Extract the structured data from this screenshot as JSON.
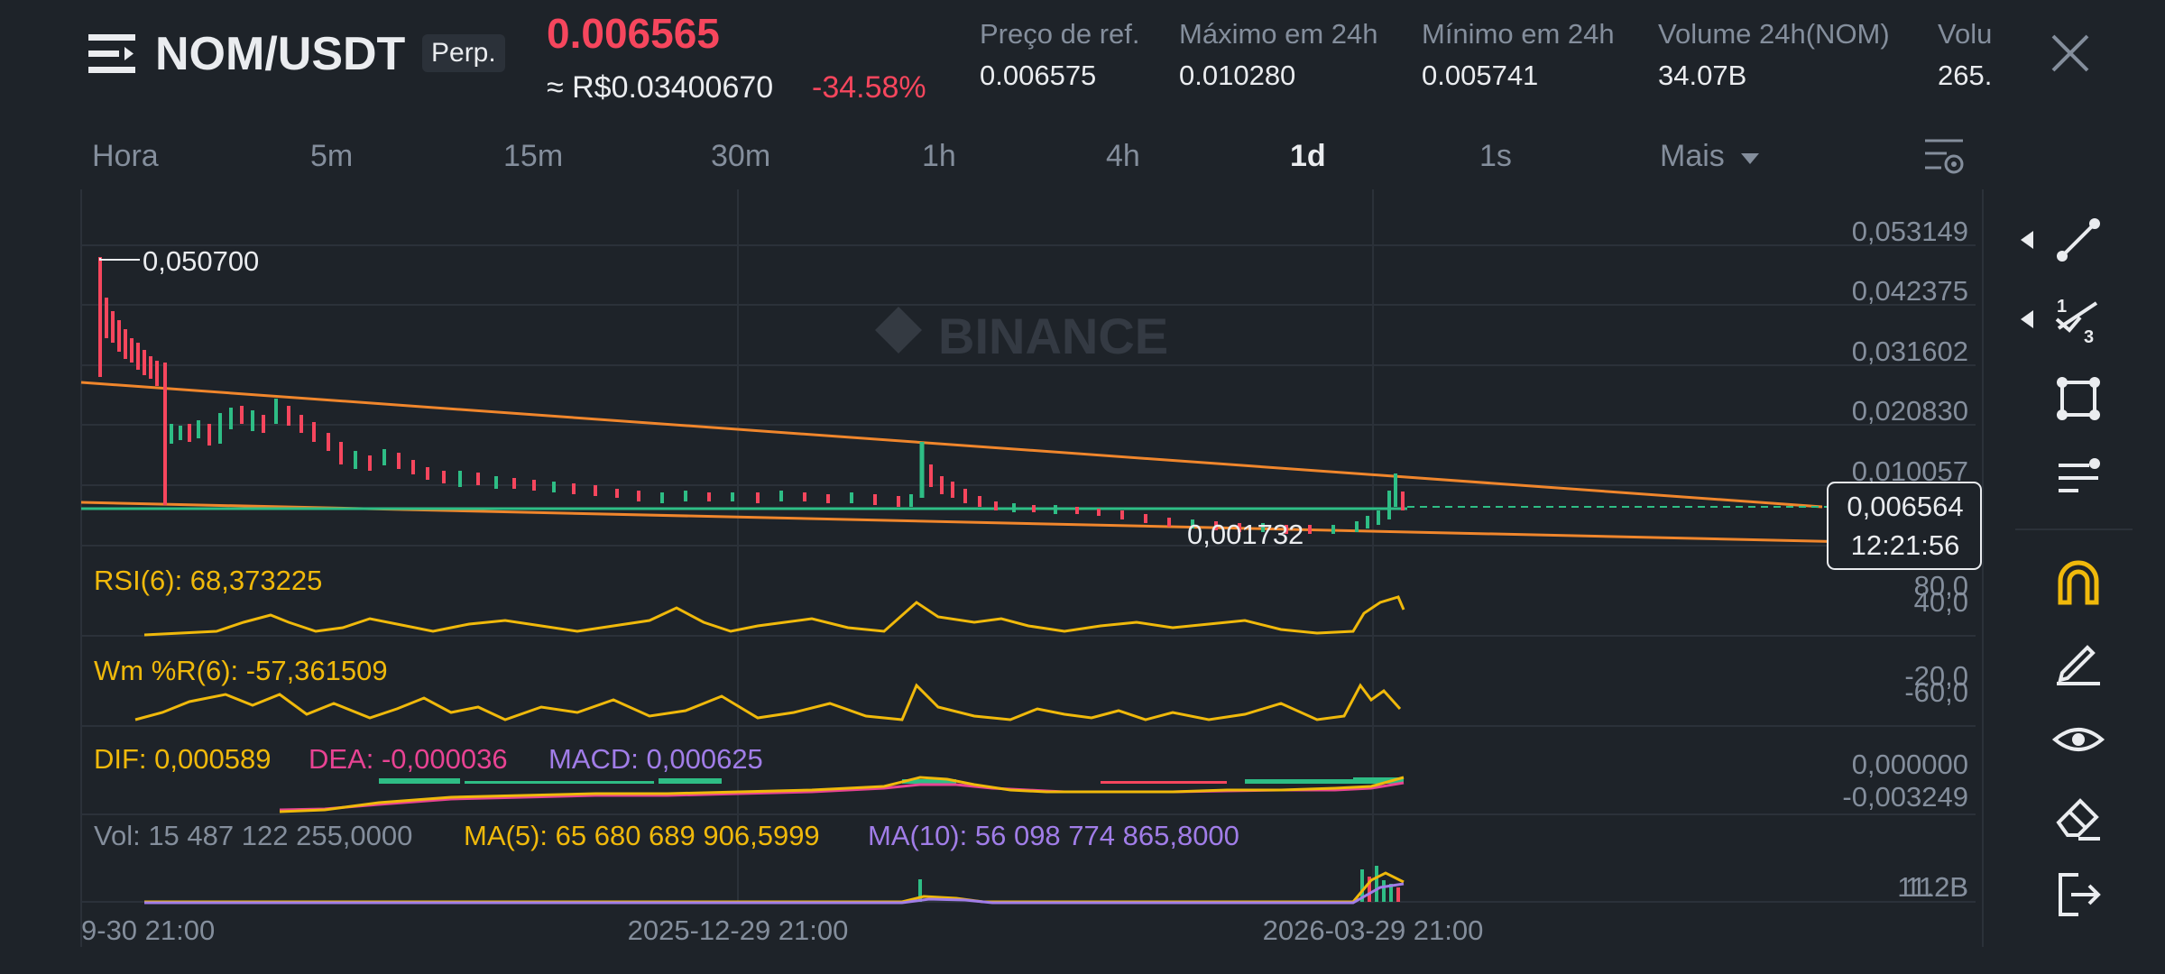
{
  "header": {
    "pair": "NOM/USDT",
    "badge": "Perp.",
    "price": "0.006565",
    "fiat_price": "≈ R$0.03400670",
    "change": "-34.58%",
    "stats": [
      {
        "label": "Preço de ref.",
        "value": "0.006575"
      },
      {
        "label": "Máximo em 24h",
        "value": "0.010280"
      },
      {
        "label": "Mínimo em 24h",
        "value": "0.005741"
      },
      {
        "label": "Volume 24h(NOM)",
        "value": "34.07B"
      },
      {
        "label": "Volu",
        "value": "265."
      }
    ]
  },
  "timeframes": [
    "Hora",
    "5m",
    "15m",
    "30m",
    "1h",
    "4h",
    "1d",
    "1s",
    "Mais"
  ],
  "active_timeframe": "1d",
  "watermark": "BINANCE",
  "main_chart": {
    "y_axis_labels": [
      "0,053149",
      "0,042375",
      "0,031602",
      "0,020830",
      "0,010057"
    ],
    "high_marker": "0,050700",
    "low_marker": "0,001732",
    "current_price": "0,006564",
    "countdown": "12:21:56"
  },
  "indicators": {
    "rsi": {
      "label": "RSI(6): 68,373225",
      "levels": [
        "80,0",
        "40,0"
      ]
    },
    "wr": {
      "label": "Wm %R(6): -57,361509",
      "levels": [
        "-20,0",
        "-60,0"
      ]
    },
    "macd": {
      "dif": "DIF: 0,000589",
      "dea": "DEA: -0,000036",
      "macd": "MACD: 0,000625",
      "levels": [
        "0,000000",
        "-0,003249"
      ]
    },
    "volume": {
      "vol": "Vol: 15 487 122 255,0000",
      "ma5": "MA(5): 65 680 689 906,5999",
      "ma10": "MA(10): 56 098 774 865,8000",
      "levels": [
        "112B",
        "11.2B"
      ]
    }
  },
  "x_axis": [
    "9-30 21:00",
    "2025-12-29 21:00",
    "2026-03-29 21:00"
  ],
  "colors": {
    "up": "#2ebd85",
    "down": "#f6465d",
    "trend": "#f0862c",
    "yellow": "#f0b90b",
    "pink": "#e84393",
    "purple": "#a17de8",
    "bg": "#1e2329"
  },
  "toolbar": [
    "line-tool-icon",
    "fibonacci-icon",
    "shape-icon",
    "indicator-lines-icon",
    "magnet-icon",
    "pencil-icon",
    "eye-icon",
    "eraser-icon",
    "exit-icon"
  ]
}
